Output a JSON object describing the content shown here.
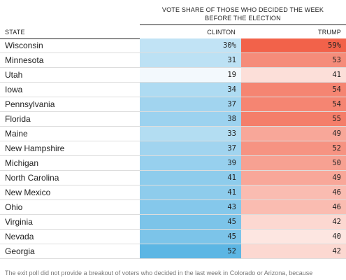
{
  "header": {
    "group_title_line1": "VOTE SHARE OF THOSE WHO DECIDED THE WEEK",
    "group_title_line2": "BEFORE THE ELECTION",
    "col_state": "STATE",
    "col_clinton": "CLINTON",
    "col_trump": "TRUMP"
  },
  "colors": {
    "clinton_light": "#f3f9fd",
    "clinton_dark": "#5cb6e4",
    "trump_light": "#fde6e1",
    "trump_dark": "#f2624a"
  },
  "chart_data": {
    "type": "table",
    "columns": [
      "STATE",
      "CLINTON",
      "TRUMP"
    ],
    "rows": [
      {
        "state": "Wisconsin",
        "clinton": 30,
        "trump": 59,
        "clinton_label": "30%",
        "trump_label": "59%"
      },
      {
        "state": "Minnesota",
        "clinton": 31,
        "trump": 53,
        "clinton_label": "31",
        "trump_label": "53"
      },
      {
        "state": "Utah",
        "clinton": 19,
        "trump": 41,
        "clinton_label": "19",
        "trump_label": "41"
      },
      {
        "state": "Iowa",
        "clinton": 34,
        "trump": 54,
        "clinton_label": "34",
        "trump_label": "54"
      },
      {
        "state": "Pennsylvania",
        "clinton": 37,
        "trump": 54,
        "clinton_label": "37",
        "trump_label": "54"
      },
      {
        "state": "Florida",
        "clinton": 38,
        "trump": 55,
        "clinton_label": "38",
        "trump_label": "55"
      },
      {
        "state": "Maine",
        "clinton": 33,
        "trump": 49,
        "clinton_label": "33",
        "trump_label": "49"
      },
      {
        "state": "New Hampshire",
        "clinton": 37,
        "trump": 52,
        "clinton_label": "37",
        "trump_label": "52"
      },
      {
        "state": "Michigan",
        "clinton": 39,
        "trump": 50,
        "clinton_label": "39",
        "trump_label": "50"
      },
      {
        "state": "North Carolina",
        "clinton": 41,
        "trump": 49,
        "clinton_label": "41",
        "trump_label": "49"
      },
      {
        "state": "New Mexico",
        "clinton": 41,
        "trump": 46,
        "clinton_label": "41",
        "trump_label": "46"
      },
      {
        "state": "Ohio",
        "clinton": 43,
        "trump": 46,
        "clinton_label": "43",
        "trump_label": "46"
      },
      {
        "state": "Virginia",
        "clinton": 45,
        "trump": 42,
        "clinton_label": "45",
        "trump_label": "42"
      },
      {
        "state": "Nevada",
        "clinton": 45,
        "trump": 40,
        "clinton_label": "45",
        "trump_label": "40"
      },
      {
        "state": "Georgia",
        "clinton": 52,
        "trump": 42,
        "clinton_label": "52",
        "trump_label": "42"
      }
    ]
  },
  "footnote": "The exit poll did not provide a breakout of voters who decided in the last week in Colorado or Arizona, because"
}
